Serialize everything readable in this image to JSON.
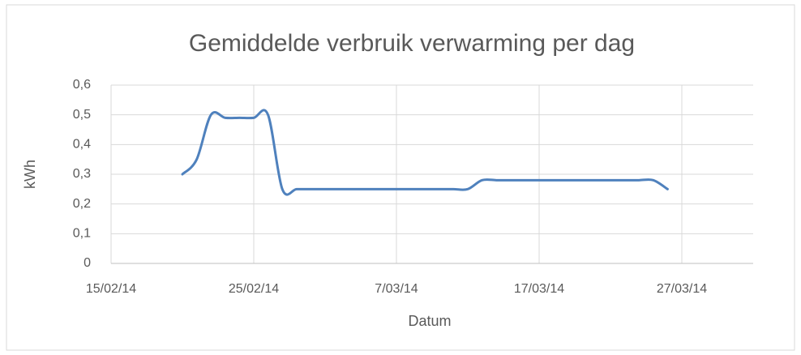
{
  "chart_data": {
    "type": "line",
    "title": "Gemiddelde verbruik verwarming per dag",
    "x_label": "Datum",
    "y_label": "kWh",
    "x": [
      "2014-02-20",
      "2014-02-21",
      "2014-02-22",
      "2014-02-23",
      "2014-02-24",
      "2014-02-25",
      "2014-02-26",
      "2014-02-27",
      "2014-02-28",
      "2014-03-01",
      "2014-03-02",
      "2014-03-03",
      "2014-03-04",
      "2014-03-05",
      "2014-03-06",
      "2014-03-07",
      "2014-03-08",
      "2014-03-09",
      "2014-03-10",
      "2014-03-11",
      "2014-03-12",
      "2014-03-13",
      "2014-03-14",
      "2014-03-15",
      "2014-03-16",
      "2014-03-17",
      "2014-03-18",
      "2014-03-19",
      "2014-03-20",
      "2014-03-21",
      "2014-03-22",
      "2014-03-23",
      "2014-03-24",
      "2014-03-25",
      "2014-03-26"
    ],
    "series": [
      {
        "color": "#4f81bd",
        "values": [
          0.3,
          0.35,
          0.5,
          0.49,
          0.49,
          0.49,
          0.5,
          0.25,
          0.25,
          0.25,
          0.25,
          0.25,
          0.25,
          0.25,
          0.25,
          0.25,
          0.25,
          0.25,
          0.25,
          0.25,
          0.25,
          0.28,
          0.28,
          0.28,
          0.28,
          0.28,
          0.28,
          0.28,
          0.28,
          0.28,
          0.28,
          0.28,
          0.28,
          0.28,
          0.25
        ]
      }
    ],
    "xlim": [
      "2014-02-15",
      "2014-04-01"
    ],
    "xticks": [
      {
        "value": "2014-02-15",
        "label": "15/02/14"
      },
      {
        "value": "2014-02-25",
        "label": "25/02/14"
      },
      {
        "value": "2014-03-07",
        "label": "7/03/14"
      },
      {
        "value": "2014-03-17",
        "label": "17/03/14"
      },
      {
        "value": "2014-03-27",
        "label": "27/03/14"
      }
    ],
    "ylim": [
      0,
      0.6
    ],
    "yticks": [
      0,
      {
        "value": 0.1,
        "label": "0,1"
      },
      {
        "value": 0.2,
        "label": "0,2"
      },
      {
        "value": 0.3,
        "label": "0,3"
      },
      {
        "value": 0.4,
        "label": "0,4"
      },
      {
        "value": 0.5,
        "label": "0,5"
      },
      {
        "value": 0.6,
        "label": "0,6"
      }
    ],
    "grid": true
  }
}
